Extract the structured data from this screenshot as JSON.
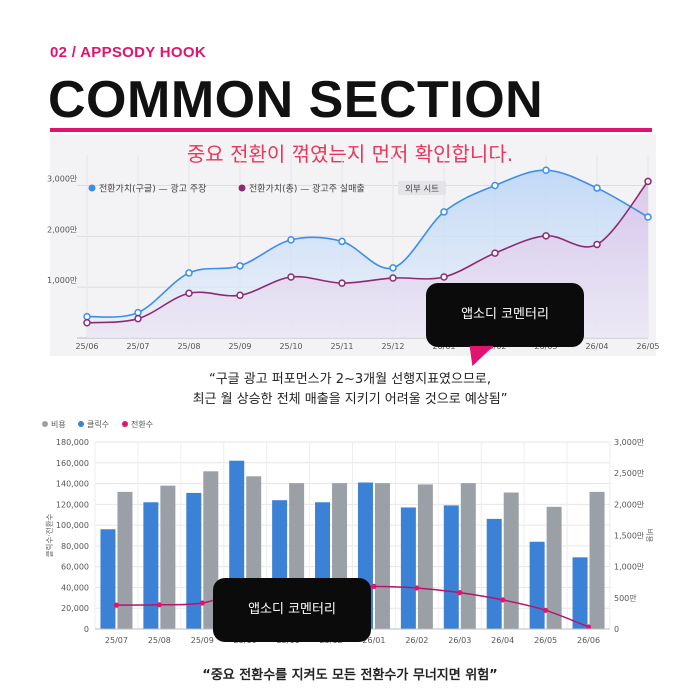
{
  "header": {
    "brand": "02 / APPSODY HOOK",
    "title": "COMMON SECTION",
    "accent_color": "#e2136e"
  },
  "chart1": {
    "subtitle": "중요 전환이 꺾였는지 먼저 확인합니다.",
    "legend_tag": "외부 시트"
  },
  "callout1": {
    "label": "앱소디 코멘터리",
    "quote_line1": "“구글 광고 퍼포먼스가 2~3개월 선행지표였으므로,",
    "quote_line2": "최근 월 상승한 전체 매출을 지키기 어려울 것으로 예상됨”"
  },
  "callout2": {
    "label": "앱소디 코멘터리",
    "quote": "“중요 전환수를 지켜도 모든 전환수가 무너지면 위험”"
  },
  "chart_data": [
    {
      "type": "area",
      "categories": [
        "25/06",
        "25/07",
        "25/08",
        "25/09",
        "25/10",
        "25/11",
        "25/12",
        "26/01",
        "26/02",
        "26/03",
        "26/04",
        "26/05"
      ],
      "yticks": [
        "1,000만",
        "2,000만",
        "3,000만"
      ],
      "ylim": [
        0,
        3600
      ],
      "series": [
        {
          "name": "전환가치(구글) — 광고 주장",
          "color": "#3d8ee8",
          "values": [
            420,
            500,
            1280,
            1420,
            1930,
            1900,
            1380,
            2480,
            3000,
            3300,
            2950,
            2380
          ]
        },
        {
          "name": "전환가치(총) — 광고주 실매출",
          "color": "#8e2a72",
          "values": [
            300,
            380,
            880,
            840,
            1200,
            1080,
            1180,
            1200,
            1670,
            2010,
            1840,
            3080
          ]
        }
      ],
      "grid": true,
      "legend_position": "top-left"
    },
    {
      "type": "bar",
      "categories": [
        "25/07",
        "25/08",
        "25/09",
        "25/10",
        "25/11",
        "25/12",
        "26/01",
        "26/02",
        "26/03",
        "26/04",
        "26/05",
        "26/06"
      ],
      "yticks_left": [
        "0",
        "20,000",
        "40,000",
        "60,000",
        "80,000",
        "100,000",
        "120,000",
        "140,000",
        "160,000",
        "180,000"
      ],
      "yticks_right": [
        "0",
        "500만",
        "1,000만",
        "1,500만",
        "2,000만",
        "2,500만",
        "3,000만"
      ],
      "ylim_left": [
        0,
        180000
      ],
      "ylim_right": [
        0,
        3000
      ],
      "ylabel_left": "클릭수·전환수",
      "ylabel_right": "비용",
      "series": [
        {
          "name": "비용",
          "color": "#9aa0a6",
          "axis": "right",
          "values": [
            2200,
            2300,
            2530,
            2450,
            2340,
            2340,
            2340,
            2320,
            2340,
            2190,
            1960,
            2200
          ]
        },
        {
          "name": "클릭수",
          "color": "#3b82d6",
          "axis": "left",
          "values": [
            96000,
            122000,
            131000,
            162000,
            124000,
            122000,
            141000,
            117000,
            119000,
            106000,
            84000,
            69000
          ]
        },
        {
          "name": "전환수",
          "color": "#e2136e",
          "axis": "left",
          "values": [
            23000,
            23300,
            25000,
            37000,
            39000,
            41000,
            41000,
            39500,
            35000,
            28000,
            18000,
            2000
          ]
        }
      ],
      "legend_position": "top-left"
    }
  ]
}
